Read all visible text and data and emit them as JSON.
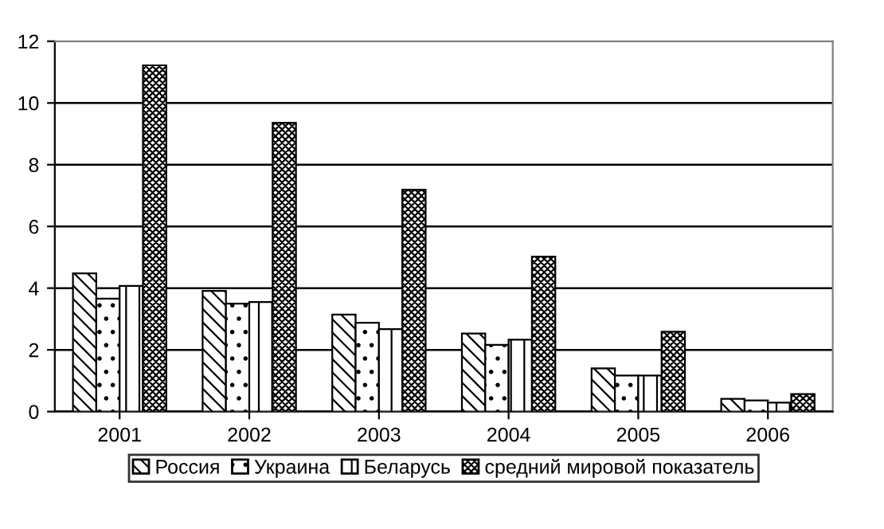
{
  "chart_data": {
    "type": "bar",
    "categories": [
      "2001",
      "2002",
      "2003",
      "2004",
      "2005",
      "2006"
    ],
    "series": [
      {
        "name": "Россия",
        "color": "#000000",
        "values": [
          4.48,
          3.91,
          3.14,
          2.53,
          1.4,
          0.41
        ]
      },
      {
        "name": "Украина",
        "color": "#000000",
        "values": [
          3.66,
          3.5,
          2.88,
          2.16,
          1.17,
          0.36
        ]
      },
      {
        "name": "Беларусь",
        "color": "#000000",
        "values": [
          4.07,
          3.55,
          2.67,
          2.33,
          1.17,
          0.29
        ]
      },
      {
        "name": "средний мировой показатель",
        "color": "#000000",
        "values": [
          11.22,
          9.36,
          7.19,
          5.02,
          2.59,
          0.57
        ]
      }
    ],
    "ylim": [
      0,
      12
    ],
    "yticks": [
      0,
      2,
      4,
      6,
      8,
      10,
      12
    ],
    "grid": "y",
    "legend": "bottom"
  }
}
